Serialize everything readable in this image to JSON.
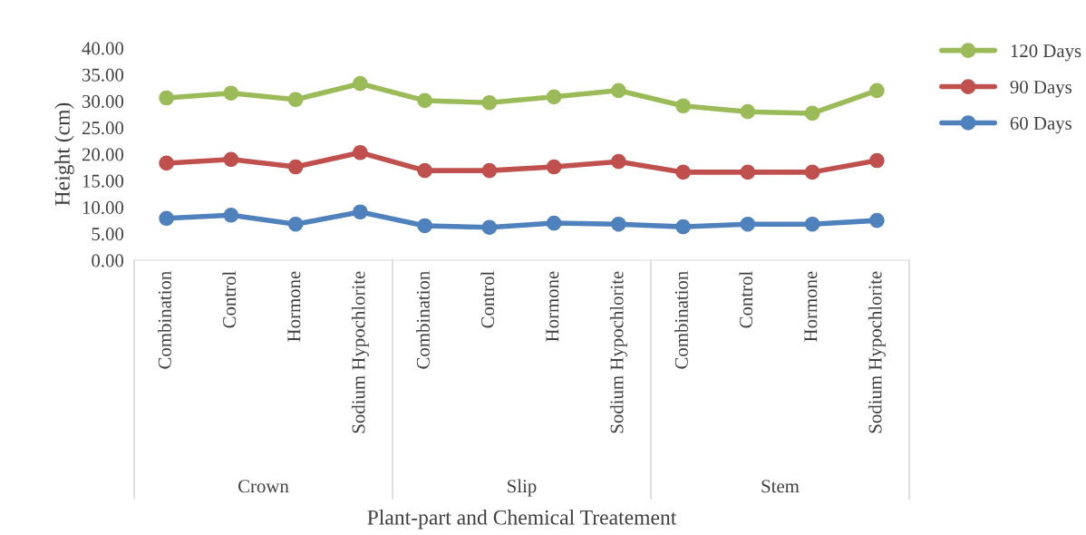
{
  "chart_data": {
    "type": "line",
    "xlabel": "Plant-part and Chemical Treatement",
    "ylabel": "Height (cm)",
    "categories": [
      "Combination",
      "Control",
      "Hormone",
      "Sodium Hypochlorite",
      "Combination",
      "Control",
      "Hormone",
      "Sodium Hypochlorite",
      "Combination",
      "Control",
      "Hormone",
      "Sodium Hypochlorite"
    ],
    "annotations": [
      "Crown",
      "Slip",
      "Stem"
    ],
    "series": [
      {
        "name": "120 Days",
        "color": "#9bbb59",
        "values": [
          30.6,
          31.5,
          30.3,
          33.3,
          30.1,
          29.7,
          30.8,
          32.0,
          29.1,
          28.0,
          27.7,
          32.0
        ]
      },
      {
        "name": "90 Days",
        "color": "#c0504d",
        "values": [
          18.3,
          19.0,
          17.6,
          20.3,
          16.9,
          16.9,
          17.6,
          18.6,
          16.6,
          16.6,
          16.6,
          18.8
        ]
      },
      {
        "name": "60 Days",
        "color": "#4f81bd",
        "values": [
          7.9,
          8.5,
          6.8,
          9.1,
          6.5,
          6.2,
          7.0,
          6.8,
          6.3,
          6.8,
          6.8,
          7.5
        ]
      }
    ],
    "ylim": [
      0,
      40
    ],
    "yticks": [
      {
        "value": 0,
        "label": "0.00"
      },
      {
        "value": 5,
        "label": "5.00"
      },
      {
        "value": 10,
        "label": "10.00"
      },
      {
        "value": 15,
        "label": "15.00"
      },
      {
        "value": 20,
        "label": "20.00"
      },
      {
        "value": 25,
        "label": "25.00"
      },
      {
        "value": 30,
        "label": "30.00"
      },
      {
        "value": 35,
        "label": "35.00"
      },
      {
        "value": 40,
        "label": "40.00"
      }
    ],
    "grid": false,
    "legend": "top right",
    "marker": "circle",
    "line_style": "solid"
  }
}
